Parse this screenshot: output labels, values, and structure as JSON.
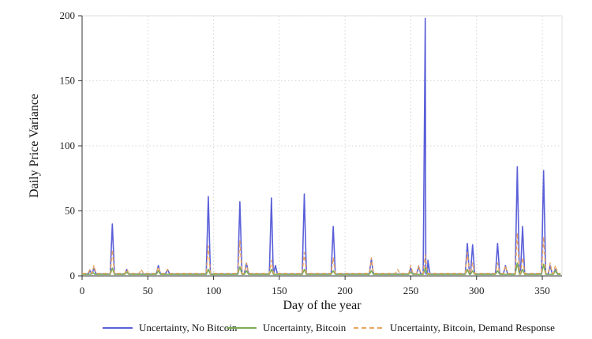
{
  "chart_data": {
    "type": "line",
    "title": "",
    "xlabel": "Day of the year",
    "ylabel": "Daily Price Variance",
    "xlim": [
      0,
      365
    ],
    "ylim": [
      0,
      200
    ],
    "xticks": [
      0,
      50,
      100,
      150,
      200,
      250,
      300,
      350
    ],
    "yticks": [
      0,
      50,
      100,
      150,
      200
    ],
    "grid": "dotted",
    "legend_position": "bottom",
    "baseline_days": [
      0,
      364
    ],
    "series": [
      {
        "name": "Uncertainty, No Bitcoin",
        "color": "#5a5fd8",
        "style": "solid",
        "baseline": 1.5,
        "points": [
          [
            6,
            4
          ],
          [
            9,
            6
          ],
          [
            23,
            40
          ],
          [
            34,
            5
          ],
          [
            58,
            8
          ],
          [
            65,
            5
          ],
          [
            96,
            61
          ],
          [
            120,
            57
          ],
          [
            125,
            10
          ],
          [
            144,
            60
          ],
          [
            147,
            8
          ],
          [
            169,
            63
          ],
          [
            191,
            38
          ],
          [
            220,
            13
          ],
          [
            250,
            6
          ],
          [
            256,
            7
          ],
          [
            261,
            198
          ],
          [
            263,
            12
          ],
          [
            293,
            25
          ],
          [
            297,
            24
          ],
          [
            316,
            25
          ],
          [
            322,
            8
          ],
          [
            331,
            84
          ],
          [
            335,
            38
          ],
          [
            351,
            81
          ],
          [
            356,
            8
          ],
          [
            360,
            5
          ]
        ]
      },
      {
        "name": "Uncertainty, Bitcoin",
        "color": "#7cae56",
        "style": "solid",
        "baseline": 1.2,
        "points": [
          [
            8,
            3
          ],
          [
            23,
            6
          ],
          [
            34,
            3
          ],
          [
            58,
            4
          ],
          [
            96,
            5
          ],
          [
            120,
            7
          ],
          [
            125,
            4
          ],
          [
            144,
            5
          ],
          [
            169,
            5
          ],
          [
            191,
            4
          ],
          [
            220,
            4
          ],
          [
            250,
            3
          ],
          [
            261,
            6
          ],
          [
            293,
            5
          ],
          [
            297,
            4
          ],
          [
            316,
            4
          ],
          [
            331,
            10
          ],
          [
            335,
            5
          ],
          [
            351,
            9
          ],
          [
            360,
            4
          ]
        ]
      },
      {
        "name": "Uncertainty, Bitcoin, Demand Response",
        "color": "#e8a563",
        "style": "dashed",
        "baseline": 2,
        "points": [
          [
            6,
            5
          ],
          [
            9,
            8
          ],
          [
            23,
            20
          ],
          [
            34,
            5
          ],
          [
            45,
            5
          ],
          [
            58,
            7
          ],
          [
            65,
            5
          ],
          [
            96,
            23
          ],
          [
            120,
            27
          ],
          [
            125,
            10
          ],
          [
            144,
            12
          ],
          [
            169,
            18
          ],
          [
            191,
            14
          ],
          [
            220,
            14
          ],
          [
            240,
            5
          ],
          [
            250,
            8
          ],
          [
            256,
            8
          ],
          [
            261,
            16
          ],
          [
            293,
            18
          ],
          [
            297,
            10
          ],
          [
            316,
            10
          ],
          [
            322,
            8
          ],
          [
            331,
            33
          ],
          [
            335,
            14
          ],
          [
            351,
            30
          ],
          [
            356,
            10
          ],
          [
            360,
            8
          ]
        ]
      }
    ]
  }
}
